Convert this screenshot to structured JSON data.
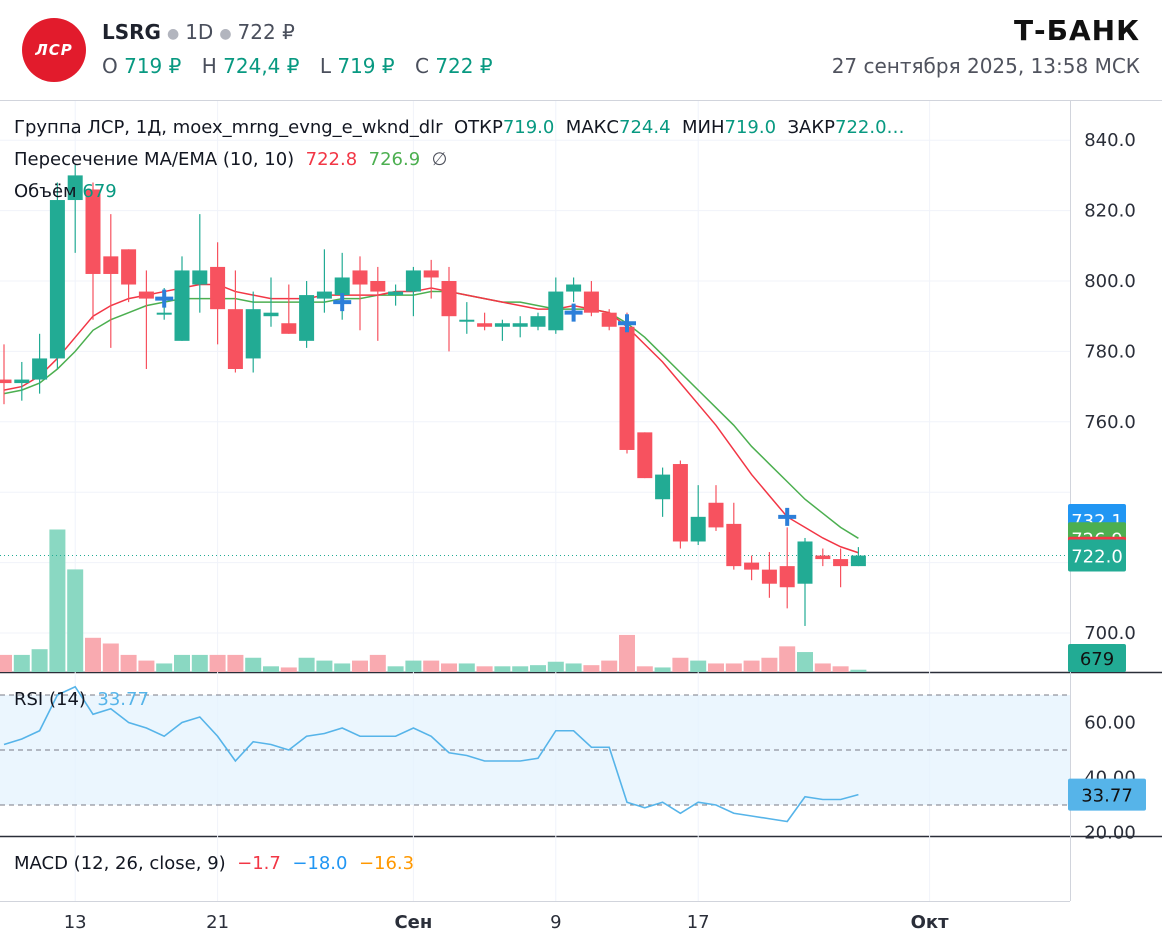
{
  "header": {
    "logo_text": "ЛСР",
    "ticker": "LSRG",
    "interval": "1D",
    "price": "722 ₽",
    "ohlc": [
      {
        "k": "O",
        "v": "719 ₽"
      },
      {
        "k": "H",
        "v": "724,4 ₽"
      },
      {
        "k": "L",
        "v": "719 ₽"
      },
      {
        "k": "C",
        "v": "722 ₽"
      }
    ],
    "brand": "Т-БАНК",
    "datetime": "27 сентября 2025, 13:58 МСК"
  },
  "legend": {
    "main": {
      "title": "Группа ЛСР, 1Д, moex_mrng_evng_e_wknd_dlr",
      "open_label": "ОТКР",
      "open": "719.0",
      "high_label": "МАКС",
      "high": "724.4",
      "low_label": "МИН",
      "low": "719.0",
      "close_label": "ЗАКР",
      "close": "722.0…"
    },
    "ma": {
      "title": "Пересечение MA/EMA (10, 10)",
      "v1": "722.8",
      "v2": "726.9",
      "sym": "∅"
    },
    "volume": {
      "title": "Объём",
      "v": "679"
    },
    "rsi": {
      "title": "RSI (14)",
      "v": "33.77"
    },
    "macd": {
      "title": "MACD (12, 26, close, 9)",
      "v1": "−1.7",
      "v2": "−18.0",
      "v3": "−16.3"
    }
  },
  "colors": {
    "up": "#22ab94",
    "down": "#f7525f",
    "vol_up": "#8ad8c2",
    "vol_down": "#f9aab0",
    "ma_red": "#f23645",
    "ma_green": "#4caf50",
    "cross": "#2c7fd9",
    "rsi": "#56b4e9",
    "label_blue": "#2196f3"
  },
  "chart_data": {
    "type": "candlestick",
    "price_axis": {
      "ticks": [
        700,
        720,
        740,
        760,
        780,
        800,
        820,
        840
      ],
      "tick_labels": [
        "700.0",
        "760.0",
        "780.0",
        "800.0",
        "820.0",
        "840.0"
      ],
      "label_values": [
        700,
        760,
        780,
        800,
        820,
        840
      ]
    },
    "x_ticks": [
      {
        "label": "13",
        "i": 4
      },
      {
        "label": "21",
        "i": 12
      },
      {
        "label": "Сен",
        "i": 23
      },
      {
        "label": "9",
        "i": 31
      },
      {
        "label": "17",
        "i": 39
      },
      {
        "label": "Окт",
        "i": 52
      }
    ],
    "candles": [
      {
        "o": 772,
        "h": 782,
        "l": 765,
        "c": 771
      },
      {
        "o": 771,
        "h": 777,
        "l": 766,
        "c": 772
      },
      {
        "o": 772,
        "h": 785,
        "l": 768,
        "c": 778
      },
      {
        "o": 778,
        "h": 828,
        "l": 775,
        "c": 823
      },
      {
        "o": 823,
        "h": 833,
        "l": 808,
        "c": 830
      },
      {
        "o": 826,
        "h": 828,
        "l": 789,
        "c": 802
      },
      {
        "o": 807,
        "h": 819,
        "l": 781,
        "c": 802
      },
      {
        "o": 809,
        "h": 809,
        "l": 794,
        "c": 799
      },
      {
        "o": 797,
        "h": 803,
        "l": 775,
        "c": 795
      },
      {
        "o": 791,
        "h": 798,
        "l": 789,
        "c": 791
      },
      {
        "o": 783,
        "h": 807,
        "l": 783,
        "c": 803
      },
      {
        "o": 799,
        "h": 819,
        "l": 791,
        "c": 803
      },
      {
        "o": 804,
        "h": 811,
        "l": 782,
        "c": 792
      },
      {
        "o": 792,
        "h": 803,
        "l": 774,
        "c": 775
      },
      {
        "o": 778,
        "h": 797,
        "l": 774,
        "c": 792
      },
      {
        "o": 790,
        "h": 801,
        "l": 787,
        "c": 791
      },
      {
        "o": 788,
        "h": 799,
        "l": 785,
        "c": 785
      },
      {
        "o": 783,
        "h": 800,
        "l": 781,
        "c": 796
      },
      {
        "o": 795,
        "h": 809,
        "l": 791,
        "c": 797
      },
      {
        "o": 796,
        "h": 808,
        "l": 789,
        "c": 801
      },
      {
        "o": 803,
        "h": 807,
        "l": 786,
        "c": 799
      },
      {
        "o": 800,
        "h": 804,
        "l": 783,
        "c": 797
      },
      {
        "o": 796,
        "h": 799,
        "l": 793,
        "c": 797
      },
      {
        "o": 797,
        "h": 804,
        "l": 790,
        "c": 803
      },
      {
        "o": 803,
        "h": 806,
        "l": 795,
        "c": 801
      },
      {
        "o": 800,
        "h": 804,
        "l": 780,
        "c": 790
      },
      {
        "o": 789,
        "h": 794,
        "l": 785,
        "c": 789
      },
      {
        "o": 788,
        "h": 791,
        "l": 786,
        "c": 787
      },
      {
        "o": 787,
        "h": 789,
        "l": 783,
        "c": 788
      },
      {
        "o": 787,
        "h": 790,
        "l": 784,
        "c": 788
      },
      {
        "o": 787,
        "h": 791,
        "l": 786,
        "c": 790
      },
      {
        "o": 786,
        "h": 801,
        "l": 785,
        "c": 797
      },
      {
        "o": 797,
        "h": 801,
        "l": 794,
        "c": 799
      },
      {
        "o": 797,
        "h": 800,
        "l": 790,
        "c": 791
      },
      {
        "o": 791,
        "h": 792,
        "l": 786,
        "c": 787
      },
      {
        "o": 787,
        "h": 791,
        "l": 751,
        "c": 752
      },
      {
        "o": 757,
        "h": 757,
        "l": 744,
        "c": 744
      },
      {
        "o": 738,
        "h": 747,
        "l": 733,
        "c": 745
      },
      {
        "o": 748,
        "h": 749,
        "l": 724,
        "c": 726
      },
      {
        "o": 726,
        "h": 742,
        "l": 725,
        "c": 733
      },
      {
        "o": 737,
        "h": 742,
        "l": 729,
        "c": 730
      },
      {
        "o": 731,
        "h": 737,
        "l": 718,
        "c": 719
      },
      {
        "o": 720,
        "h": 722,
        "l": 715,
        "c": 718
      },
      {
        "o": 718,
        "h": 723,
        "l": 710,
        "c": 714
      },
      {
        "o": 719,
        "h": 730,
        "l": 707,
        "c": 713
      },
      {
        "o": 714,
        "h": 727,
        "l": 702,
        "c": 726
      },
      {
        "o": 722,
        "h": 724,
        "l": 719,
        "c": 721
      },
      {
        "o": 721,
        "h": 724,
        "l": 713,
        "c": 719
      },
      {
        "o": 719,
        "h": 724.4,
        "l": 719,
        "c": 722
      }
    ],
    "volume": [
      3,
      3,
      4,
      25,
      18,
      6,
      5,
      3,
      2,
      1.5,
      3,
      3,
      3,
      3,
      2.5,
      1,
      0.8,
      2.5,
      2,
      1.5,
      2,
      3,
      1,
      2,
      2,
      1.5,
      1.5,
      1,
      1,
      1,
      1.2,
      1.8,
      1.5,
      1.2,
      2,
      6.5,
      1,
      0.8,
      2.5,
      2,
      1.5,
      1.5,
      2,
      2.5,
      4.5,
      3.5,
      1.5,
      1,
      0.4
    ],
    "ma_red": [
      769,
      770,
      773,
      778,
      784,
      790,
      793,
      795,
      796,
      797,
      798,
      799,
      799,
      797,
      796,
      795,
      795,
      795,
      796,
      796,
      796,
      796,
      797,
      797,
      798,
      797,
      796,
      795,
      794,
      793,
      792,
      792,
      793,
      792,
      791,
      787,
      782,
      777,
      771,
      765,
      759,
      752,
      745,
      739,
      733,
      730,
      727,
      724.5,
      722.8
    ],
    "ma_green": [
      768,
      769,
      771,
      775,
      780,
      786,
      789,
      791,
      793,
      794,
      795,
      795,
      795,
      795,
      794,
      794,
      794,
      794,
      794,
      795,
      795,
      796,
      796,
      796,
      797,
      797,
      796,
      795,
      794,
      794,
      793,
      792,
      792,
      792,
      791,
      788,
      784,
      779,
      774,
      769,
      764,
      759,
      753,
      748,
      743,
      738,
      734,
      730,
      726.9
    ],
    "crosses": [
      {
        "i": 9,
        "v": 795
      },
      {
        "i": 19,
        "v": 794
      },
      {
        "i": 32,
        "v": 791
      },
      {
        "i": 35,
        "v": 788
      },
      {
        "i": 44,
        "v": 733
      }
    ],
    "rsi": {
      "ticks": [
        "20.00",
        "40.00",
        "60.00"
      ],
      "tick_values": [
        20,
        40,
        60
      ],
      "bands": [
        30,
        50,
        70
      ],
      "values": [
        52,
        54,
        57,
        70,
        73,
        63,
        65,
        60,
        58,
        55,
        60,
        62,
        55,
        46,
        53,
        52,
        50,
        55,
        56,
        58,
        55,
        55,
        55,
        58,
        55,
        49,
        48,
        46,
        46,
        46,
        47,
        57,
        57,
        51,
        51,
        31,
        29,
        31,
        27,
        31,
        30,
        27,
        26,
        25,
        24,
        33,
        32,
        32,
        33.77
      ]
    },
    "macd": {
      "values": [
        "−1.7",
        "−18.0",
        "−16.3"
      ]
    },
    "price_labels": [
      {
        "text": "732.1",
        "v": 732.1,
        "color": "#2196f3"
      },
      {
        "text": "726.9",
        "v": 726.9,
        "color": "#4caf50"
      },
      {
        "text": "722.8",
        "v": 722.8,
        "color": "#f23645"
      },
      {
        "text": "722.0",
        "v": 722.0,
        "color": "#22ab94"
      }
    ],
    "volume_label": "679",
    "rsi_label": "33.77"
  }
}
